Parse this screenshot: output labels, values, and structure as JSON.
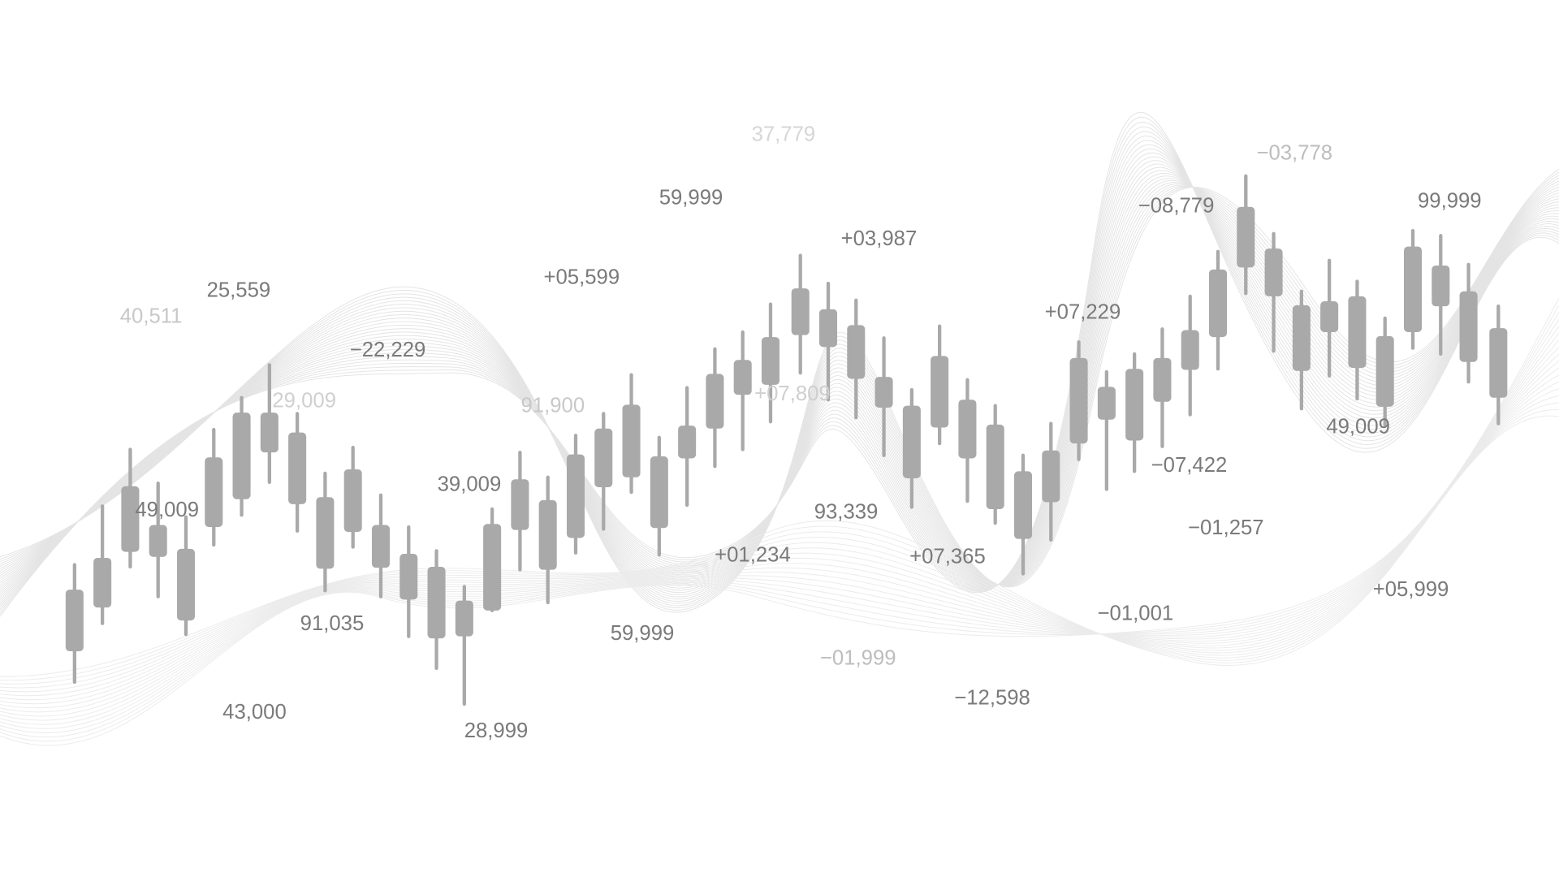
{
  "labels": [
    "37,779",
    "−03,778",
    "59,999",
    "−08,779",
    "99,999",
    "+03,987",
    "25,559",
    "+05,599",
    "40,511",
    "+07,229",
    "−22,229",
    "29,009",
    "91,900",
    "+07,809",
    "49,009",
    "−07,422",
    "39,009",
    "49,009",
    "93,339",
    "−01,257",
    "+01,234",
    "+07,365",
    "+05,999",
    "−01,001",
    "91,035",
    "59,999",
    "−01,999",
    "−12,598",
    "43,000",
    "28,999"
  ]
}
